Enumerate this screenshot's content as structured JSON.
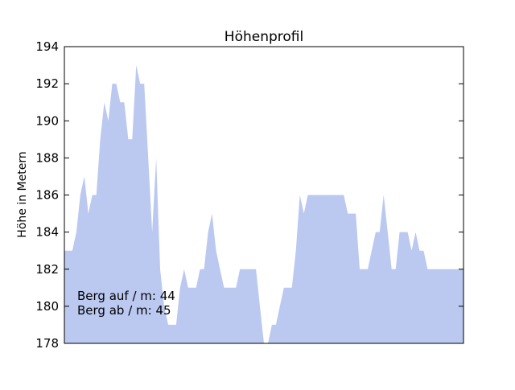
{
  "colors": {
    "fill": "#bbc8f0",
    "axis": "#000000",
    "background": "#ffffff"
  },
  "chart_data": {
    "type": "area",
    "title": "Höhenprofil",
    "xlabel": "",
    "ylabel": "Höhe in Metern",
    "ylim": [
      178,
      194
    ],
    "yticks": [
      178,
      180,
      182,
      184,
      186,
      188,
      190,
      192,
      194
    ],
    "xlim": [
      0,
      100
    ],
    "grid": false,
    "x": [
      0,
      2,
      3,
      4,
      5,
      6,
      7,
      8,
      9,
      10,
      11,
      12,
      13,
      14,
      15,
      16,
      17,
      18,
      19,
      20,
      21,
      22,
      23,
      24,
      25,
      26,
      27,
      28,
      29,
      30,
      31,
      32,
      33,
      34,
      35,
      36,
      37,
      38,
      39,
      40,
      41,
      42,
      43,
      44,
      45,
      46,
      47,
      48,
      49,
      50,
      51,
      52,
      53,
      54,
      55,
      56,
      57,
      58,
      59,
      60,
      61,
      62,
      63,
      64,
      65,
      66,
      67,
      68,
      69,
      70,
      71,
      72,
      73,
      74,
      75,
      76,
      77,
      78,
      79,
      80,
      81,
      82,
      83,
      84,
      85,
      86,
      87,
      88,
      89,
      90,
      91,
      92,
      93,
      94,
      95,
      96,
      97,
      98,
      99,
      100
    ],
    "values": [
      183,
      183,
      184,
      186,
      187,
      185,
      186,
      186,
      189,
      191,
      190,
      192,
      192,
      191,
      191,
      189,
      189,
      193,
      192,
      192,
      188,
      184,
      188,
      182,
      180,
      179,
      179,
      179,
      181,
      182,
      181,
      181,
      181,
      182,
      182,
      184,
      185,
      183,
      182,
      181,
      181,
      181,
      181,
      182,
      182,
      182,
      182,
      182,
      180,
      178,
      178,
      179,
      179,
      180,
      181,
      181,
      181,
      183,
      186,
      185,
      186,
      186,
      186,
      186,
      186,
      186,
      186,
      186,
      186,
      186,
      185,
      185,
      185,
      182,
      182,
      182,
      183,
      184,
      184,
      186,
      184,
      182,
      182,
      184,
      184,
      184,
      183,
      184,
      183,
      183,
      182,
      182,
      182,
      182,
      182,
      182,
      182,
      182,
      182,
      182
    ],
    "annotations": [
      "Berg auf / m: 44",
      "Berg ab / m: 45"
    ]
  }
}
